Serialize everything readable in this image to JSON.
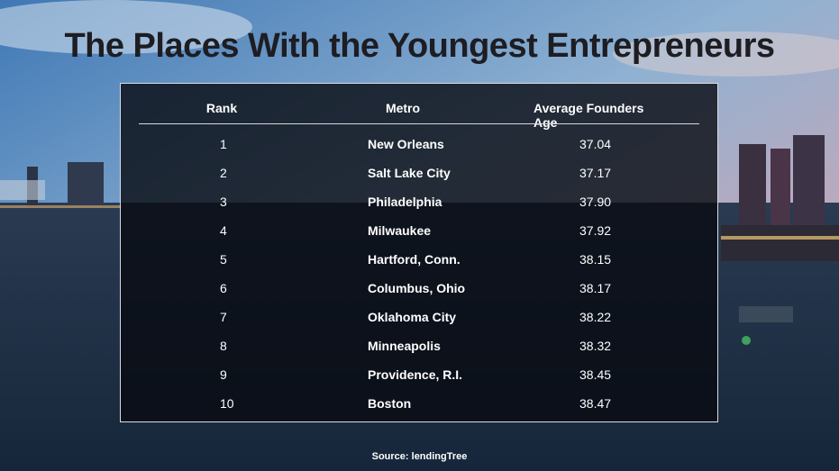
{
  "title": "The Places With the Youngest Entrepreneurs",
  "source": "Source: lendingTree",
  "chart_data": {
    "type": "table",
    "columns": [
      "Rank",
      "Metro",
      "Average Founders Age"
    ],
    "rows": [
      {
        "rank": "1",
        "metro": "New Orleans",
        "age": "37.04"
      },
      {
        "rank": "2",
        "metro": "Salt Lake City",
        "age": "37.17"
      },
      {
        "rank": "3",
        "metro": "Philadelphia",
        "age": "37.90"
      },
      {
        "rank": "4",
        "metro": "Milwaukee",
        "age": "37.92"
      },
      {
        "rank": "5",
        "metro": "Hartford, Conn.",
        "age": "38.15"
      },
      {
        "rank": "6",
        "metro": "Columbus, Ohio",
        "age": "38.17"
      },
      {
        "rank": "7",
        "metro": "Oklahoma City",
        "age": "38.22"
      },
      {
        "rank": "8",
        "metro": "Minneapolis",
        "age": "38.32"
      },
      {
        "rank": "9",
        "metro": "Providence, R.I.",
        "age": "38.45"
      },
      {
        "rank": "10",
        "metro": "Boston",
        "age": "38.47"
      }
    ]
  }
}
